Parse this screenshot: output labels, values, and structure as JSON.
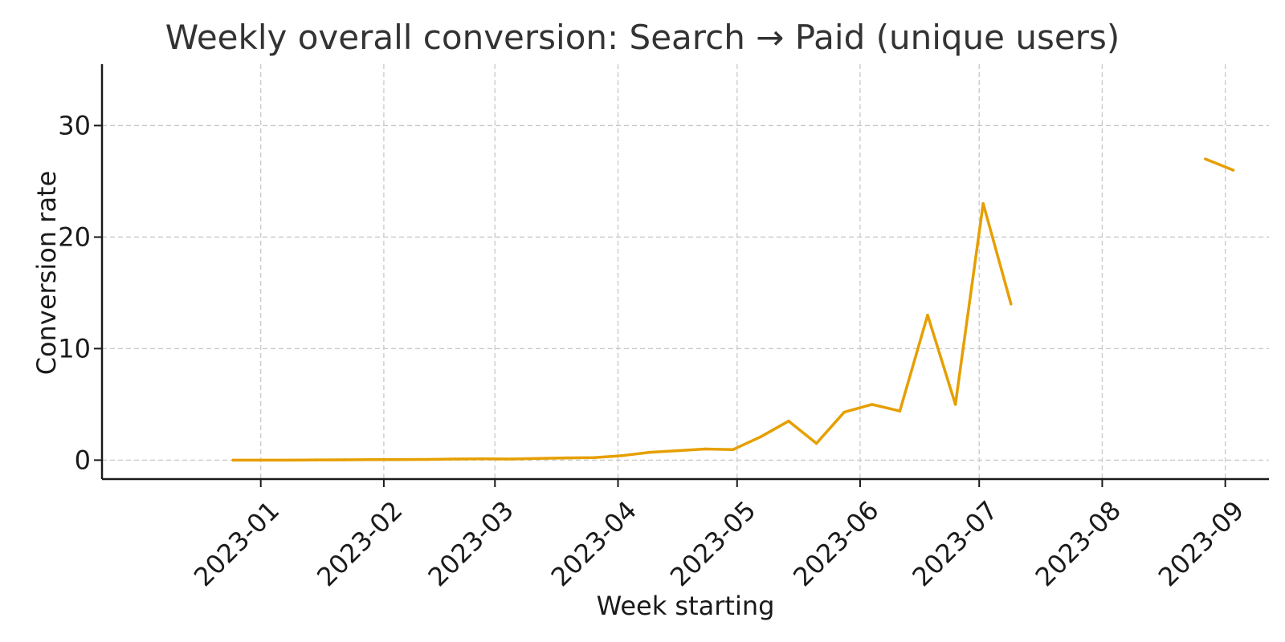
{
  "chart_data": {
    "type": "line",
    "title": "Weekly overall conversion: Search → Paid (unique users)",
    "xlabel": "Week starting",
    "ylabel": "Conversion rate",
    "x_ticks": [
      "2023-01",
      "2023-02",
      "2023-03",
      "2023-04",
      "2023-05",
      "2023-06",
      "2023-07",
      "2023-08",
      "2023-09"
    ],
    "y_ticks": [
      0,
      10,
      20,
      30
    ],
    "xlim": [
      "2022-11-22",
      "2023-09-12"
    ],
    "ylim": [
      -1.7,
      35.5
    ],
    "grid": true,
    "legend": "none",
    "line_color": "#E69F00",
    "series": [
      {
        "x": [
          "2022-12-25",
          "2023-01-01",
          "2023-01-08",
          "2023-01-15",
          "2023-01-22",
          "2023-01-29",
          "2023-02-05",
          "2023-02-12",
          "2023-02-19",
          "2023-02-26",
          "2023-03-05",
          "2023-03-12",
          "2023-03-19",
          "2023-03-26",
          "2023-04-02",
          "2023-04-09",
          "2023-04-16",
          "2023-04-23",
          "2023-04-30",
          "2023-05-07",
          "2023-05-14",
          "2023-05-21",
          "2023-05-28",
          "2023-06-04",
          "2023-06-11",
          "2023-06-18",
          "2023-06-25",
          "2023-07-02",
          "2023-07-09",
          "2023-07-16",
          "2023-07-23",
          "2023-07-30",
          "2023-08-06",
          "2023-08-13",
          "2023-08-20",
          "2023-08-27",
          "2023-09-03"
        ],
        "values": [
          0,
          0,
          0,
          0.02,
          0.03,
          0.04,
          0.05,
          0.06,
          0.1,
          0.12,
          0.1,
          0.15,
          0.2,
          0.22,
          0.4,
          0.7,
          0.85,
          1.0,
          0.95,
          2.1,
          3.5,
          1.5,
          4.3,
          5.0,
          4.4,
          13.0,
          5.0,
          23.0,
          14.0,
          null,
          null,
          null,
          null,
          null,
          null,
          27.0,
          26.0
        ]
      }
    ]
  }
}
